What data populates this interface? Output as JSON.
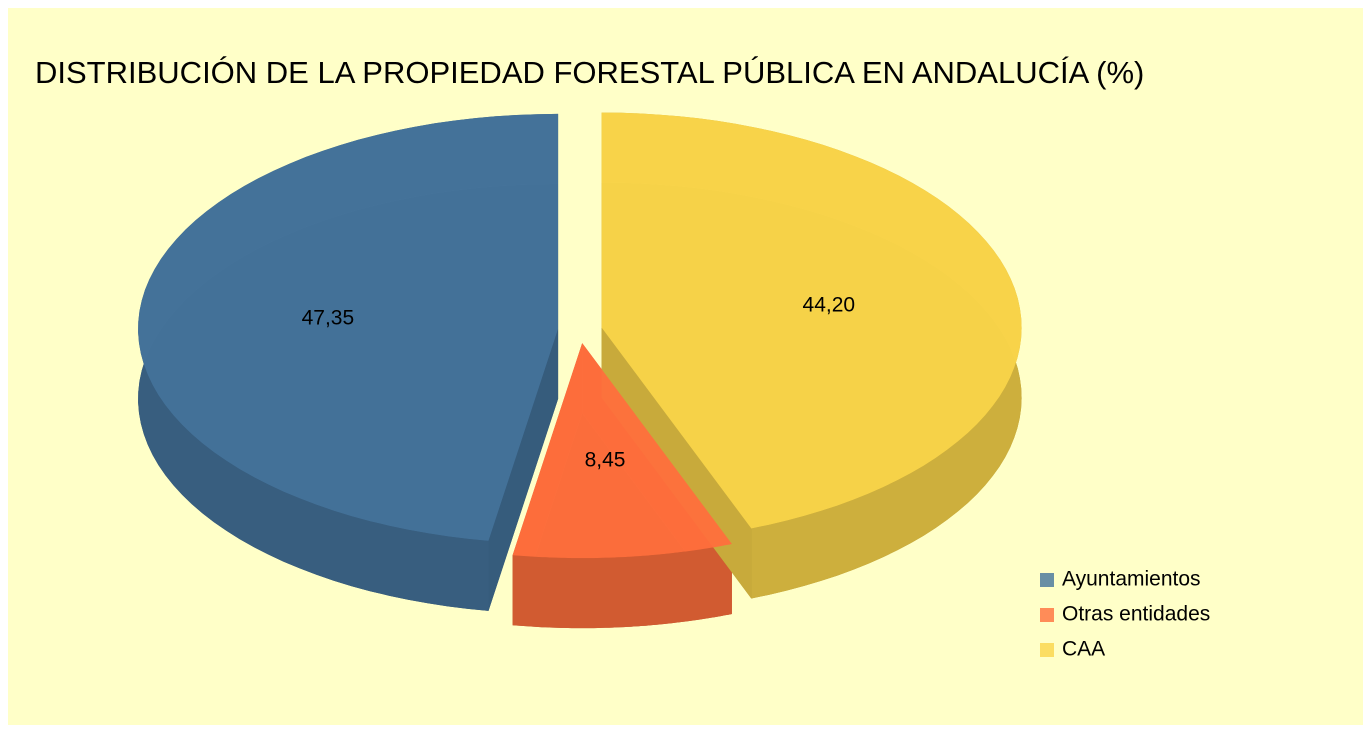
{
  "chart_data": {
    "type": "pie3d",
    "title": "DISTRIBUCIÓN DE LA PROPIEDAD FORESTAL PÚBLICA EN ANDALUCÍA (%)",
    "categories": [
      "Ayuntamientos",
      "Otras entidades",
      "CAA"
    ],
    "values": [
      47.35,
      8.45,
      44.2
    ],
    "value_labels": [
      "47,35",
      "8,45",
      "44,20"
    ],
    "colors": [
      "#44739b",
      "#ff6f3c",
      "#fad54a"
    ],
    "legend": "right"
  }
}
